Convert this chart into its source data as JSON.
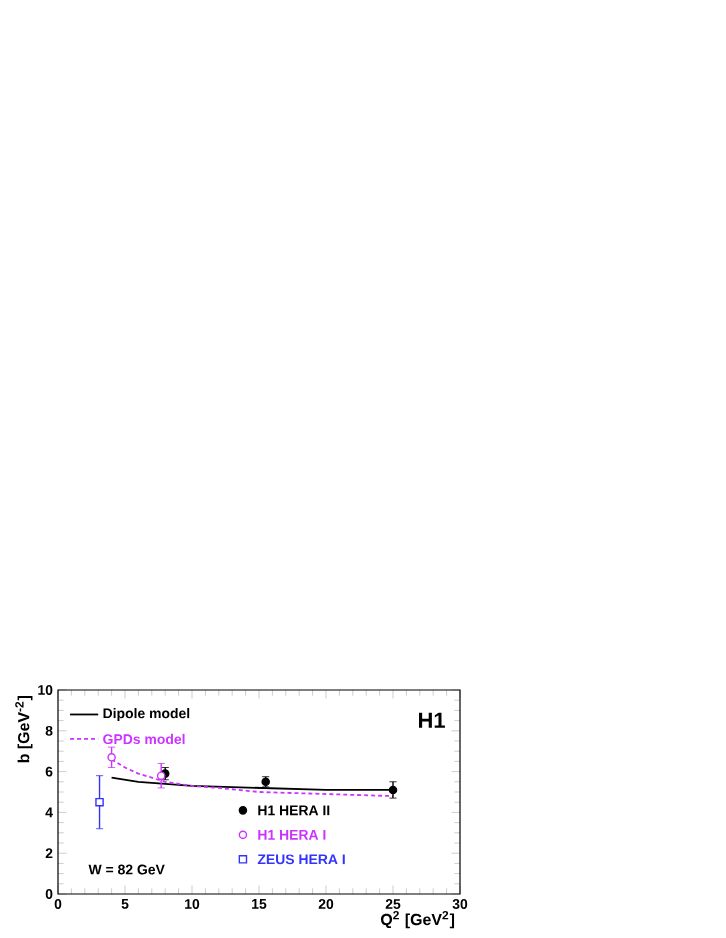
{
  "chart_data": {
    "type": "scatter",
    "xlabel": "Q$^{2}$ [GeV$^{2}$]",
    "ylabel": "b [GeV$^{-2}$]",
    "xlim": [
      0,
      30
    ],
    "ylim": [
      0,
      10
    ],
    "xticks": [
      0,
      5,
      10,
      15,
      20,
      25,
      30
    ],
    "yticks": [
      0,
      2,
      4,
      6,
      8,
      10
    ],
    "legend": "top left",
    "grid": false,
    "annotations": [
      "H1",
      "W = 82 GeV"
    ],
    "series": [
      {
        "name": "Dipole model",
        "type": "line",
        "color": "#000000",
        "line_style": "solid",
        "marker": "none",
        "x": [
          4,
          6,
          8,
          10,
          15,
          20,
          25
        ],
        "values": [
          5.7,
          5.5,
          5.4,
          5.3,
          5.2,
          5.1,
          5.1
        ]
      },
      {
        "name": "GPDs model",
        "type": "line",
        "color": "#cc33ff",
        "line_style": "dashed",
        "marker": "none",
        "x": [
          4,
          5,
          6,
          7,
          8,
          10,
          12,
          15,
          20,
          25
        ],
        "values": [
          6.6,
          6.2,
          5.9,
          5.7,
          5.5,
          5.3,
          5.2,
          5.0,
          4.9,
          4.8
        ]
      },
      {
        "name": "H1 HERA II",
        "color": "#000000",
        "marker": "circle",
        "x": [
          8,
          15.5,
          25
        ],
        "values": [
          5.9,
          5.5,
          5.1
        ],
        "errors": [
          0.3,
          0.25,
          0.4
        ]
      },
      {
        "name": "H1 HERA I",
        "color": "#cc33ff",
        "marker": "circle",
        "x": [
          4,
          7.7
        ],
        "values": [
          6.7,
          5.8
        ],
        "errors": [
          0.5,
          0.6
        ]
      },
      {
        "name": "ZEUS HERA I",
        "color": "#3333ff",
        "marker": "square",
        "x": [
          3.1
        ],
        "values": [
          4.5
        ],
        "errors": [
          1.3
        ]
      }
    ]
  }
}
